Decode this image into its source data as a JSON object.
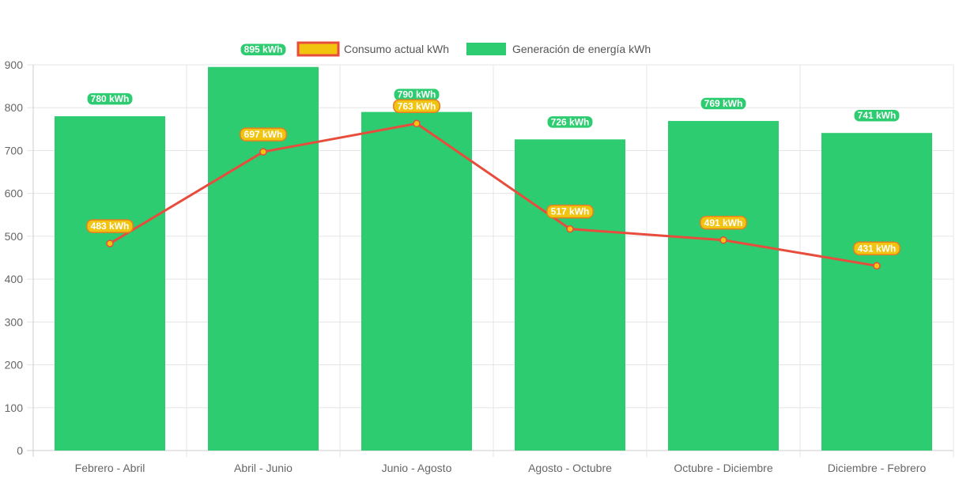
{
  "chart_data": {
    "type": "bar",
    "categories": [
      "Febrero - Abril",
      "Abril - Junio",
      "Junio - Agosto",
      "Agosto - Octubre",
      "Octubre - Diciembre",
      "Diciembre - Febrero"
    ],
    "series": [
      {
        "name": "Consumo actual kWh",
        "type": "line",
        "values": [
          483,
          697,
          763,
          517,
          491,
          431
        ],
        "labels": [
          "483 kWh",
          "697 kWh",
          "763 kWh",
          "517 kWh",
          "491 kWh",
          "431 kWh"
        ],
        "color": "#e74c3c",
        "fill": "#f1c40f"
      },
      {
        "name": "Generación de energía kWh",
        "type": "bar",
        "values": [
          780,
          895,
          790,
          726,
          769,
          741
        ],
        "labels": [
          "780 kWh",
          "895 kWh",
          "790 kWh",
          "726 kWh",
          "769 kWh",
          "741 kWh"
        ],
        "color": "#2ecc71"
      }
    ],
    "yticks": [
      "0",
      "100",
      "200",
      "300",
      "400",
      "500",
      "600",
      "700",
      "800",
      "900"
    ],
    "ylim": [
      0,
      900
    ],
    "title": "",
    "xlabel": "",
    "ylabel": "",
    "grid": true,
    "legend": "top-center"
  }
}
